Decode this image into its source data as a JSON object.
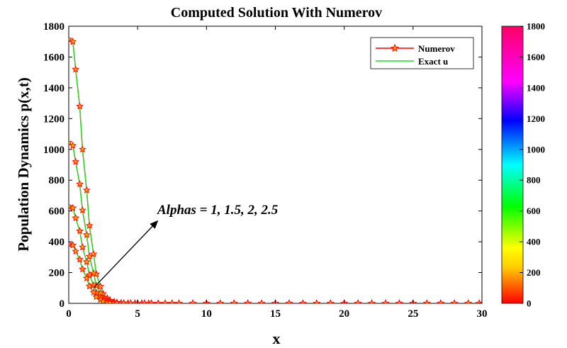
{
  "chart_data": {
    "type": "line",
    "title": "Computed Solution With Numerov",
    "xlabel": "x",
    "ylabel": "Population Dynamics p(x,t)",
    "xlim": [
      0,
      30
    ],
    "ylim": [
      0,
      1800
    ],
    "xticks": [
      0,
      5,
      10,
      15,
      20,
      25,
      30
    ],
    "yticks": [
      0,
      200,
      400,
      600,
      800,
      1000,
      1200,
      1400,
      1600,
      1800
    ],
    "grid": false,
    "legend": {
      "position": "top-right",
      "entries": [
        {
          "label": "Numerov",
          "color": "#ff0000",
          "marker": "star"
        },
        {
          "label": "Exact u",
          "color": "#22dd22",
          "marker": "none"
        }
      ]
    },
    "colorbar": {
      "range": [
        0,
        1800
      ],
      "ticks": [
        0,
        200,
        400,
        600,
        800,
        1000,
        1200,
        1400,
        1600,
        1800
      ],
      "colormap": "hsv"
    },
    "annotation": {
      "text": "Alphas = 1, 1.5, 2, 2.5",
      "arrow_from": [
        1.8,
        100
      ],
      "arrow_to": [
        6.5,
        540
      ]
    },
    "x": [
      0,
      0.3,
      0.5,
      0.8,
      1.0,
      1.3,
      1.5,
      1.8,
      2.0,
      2.3,
      2.5,
      2.8,
      3.0,
      3.3,
      3.5,
      3.8,
      4.0,
      4.3,
      4.5,
      4.8,
      5.0,
      5.3,
      5.5,
      5.8,
      6.0,
      6.5,
      7.0,
      7.5,
      8.0,
      9.0,
      10.0,
      11.0,
      12.0,
      13.0,
      14.0,
      15.0,
      16.0,
      17.0,
      18.0,
      19.0,
      20.0,
      21.0,
      22.0,
      23.0,
      24.0,
      25.0,
      26.0,
      27.0,
      28.0,
      29.0,
      29.8
    ],
    "series": [
      {
        "values": [
          1715,
          1700,
          1520,
          1280,
          1000,
          735,
          505,
          320,
          190,
          110,
          62,
          34,
          19,
          11,
          6,
          3,
          2,
          1,
          0.5,
          0.3,
          0.2,
          0.1,
          0.1,
          0,
          0,
          0,
          0,
          0,
          0,
          0,
          0,
          0,
          0,
          0,
          0,
          0,
          0,
          0,
          0,
          0,
          0,
          0,
          0,
          0,
          0,
          0,
          0,
          0,
          0,
          0,
          0
        ]
      },
      {
        "values": [
          1045,
          1025,
          920,
          775,
          605,
          445,
          305,
          195,
          115,
          66,
          37,
          20,
          11,
          6,
          3,
          2,
          1,
          0.5,
          0.3,
          0.2,
          0.1,
          0,
          0,
          0,
          0,
          0,
          0,
          0,
          0,
          0,
          0,
          0,
          0,
          0,
          0,
          0,
          0,
          0,
          0,
          0,
          0,
          0,
          0,
          0,
          0,
          0,
          0,
          0,
          0,
          0,
          0
        ]
      },
      {
        "values": [
          630,
          620,
          555,
          470,
          365,
          270,
          185,
          118,
          70,
          40,
          22,
          12,
          6,
          3,
          2,
          1,
          0.5,
          0.3,
          0.2,
          0.1,
          0,
          0,
          0,
          0,
          0,
          0,
          0,
          0,
          0,
          0,
          0,
          0,
          0,
          0,
          0,
          0,
          0,
          0,
          0,
          0,
          0,
          0,
          0,
          0,
          0,
          0,
          0,
          0,
          0,
          0,
          0
        ]
      },
      {
        "values": [
          385,
          378,
          338,
          285,
          222,
          163,
          112,
          72,
          42,
          24,
          13,
          7,
          4,
          2,
          1,
          0.5,
          0.3,
          0.2,
          0.1,
          0,
          0,
          0,
          0,
          0,
          0,
          0,
          0,
          0,
          0,
          0,
          0,
          0,
          0,
          0,
          0,
          0,
          0,
          0,
          0,
          0,
          0,
          0,
          0,
          0,
          0,
          0,
          0,
          0,
          0,
          0,
          0
        ]
      }
    ]
  }
}
